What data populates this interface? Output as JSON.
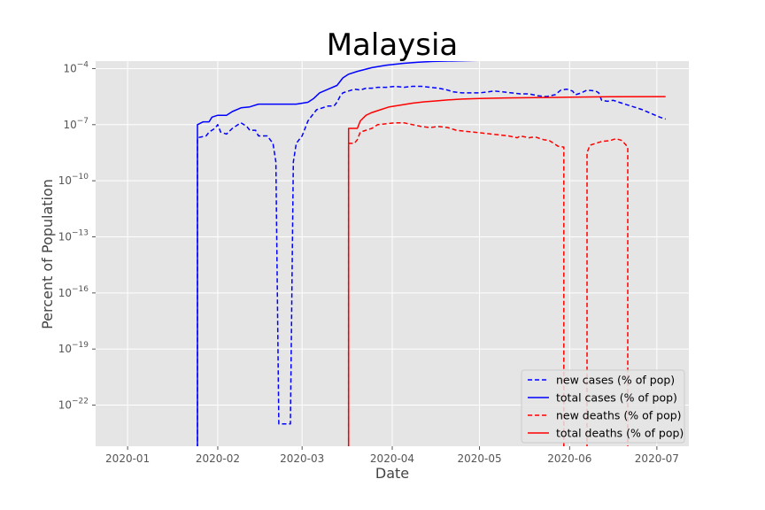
{
  "chart_data": {
    "type": "line",
    "title": "Malaysia",
    "xlabel": "Date",
    "ylabel": "Percent of Population",
    "yscale": "log",
    "xlim": [
      "2019-12-21",
      "2020-07-12"
    ],
    "ylim_log10": [
      -24.2,
      -3.6
    ],
    "grid": true,
    "legend_position": "lower-right",
    "x_ticks": [
      "2020-01-01",
      "2020-02-01",
      "2020-03-01",
      "2020-04-01",
      "2020-05-01",
      "2020-06-01",
      "2020-07-01"
    ],
    "x_tick_labels": [
      "2020-01",
      "2020-02",
      "2020-03",
      "2020-04",
      "2020-05",
      "2020-06",
      "2020-07"
    ],
    "y_tick_exponents": [
      -4,
      -7,
      -10,
      -13,
      -16,
      -19,
      -22
    ],
    "y_tick_base": "10",
    "series": [
      {
        "name": "new cases (% of pop)",
        "color": "#0000ff",
        "style": "dashed",
        "points": [
          [
            "2020-01-25",
            -40
          ],
          [
            "2020-01-25",
            -7.7
          ],
          [
            "2020-01-28",
            -7.6
          ],
          [
            "2020-01-29",
            -7.4
          ],
          [
            "2020-01-31",
            -7.2
          ],
          [
            "2020-02-01",
            -7.0
          ],
          [
            "2020-02-02",
            -7.4
          ],
          [
            "2020-02-04",
            -7.5
          ],
          [
            "2020-02-06",
            -7.2
          ],
          [
            "2020-02-08",
            -7.0
          ],
          [
            "2020-02-09",
            -6.9
          ],
          [
            "2020-02-11",
            -7.1
          ],
          [
            "2020-02-12",
            -7.3
          ],
          [
            "2020-02-14",
            -7.3
          ],
          [
            "2020-02-15",
            -7.6
          ],
          [
            "2020-02-18",
            -7.6
          ],
          [
            "2020-02-20",
            -8.0
          ],
          [
            "2020-02-21",
            -9.0
          ],
          [
            "2020-02-22",
            -23.0
          ],
          [
            "2020-02-26",
            -23.0
          ],
          [
            "2020-02-27",
            -9.0
          ],
          [
            "2020-02-28",
            -8.0
          ],
          [
            "2020-03-01",
            -7.6
          ],
          [
            "2020-03-03",
            -6.8
          ],
          [
            "2020-03-04",
            -6.6
          ],
          [
            "2020-03-06",
            -6.2
          ],
          [
            "2020-03-08",
            -6.1
          ],
          [
            "2020-03-10",
            -6.0
          ],
          [
            "2020-03-12",
            -6.0
          ],
          [
            "2020-03-13",
            -5.8
          ],
          [
            "2020-03-14",
            -5.5
          ],
          [
            "2020-03-15",
            -5.3
          ],
          [
            "2020-03-17",
            -5.2
          ],
          [
            "2020-03-19",
            -5.1
          ],
          [
            "2020-03-21",
            -5.15
          ],
          [
            "2020-03-23",
            -5.05
          ],
          [
            "2020-03-25",
            -5.05
          ],
          [
            "2020-03-27",
            -5.0
          ],
          [
            "2020-03-30",
            -5.0
          ],
          [
            "2020-04-02",
            -4.95
          ],
          [
            "2020-04-05",
            -5.0
          ],
          [
            "2020-04-08",
            -4.95
          ],
          [
            "2020-04-11",
            -4.95
          ],
          [
            "2020-04-14",
            -5.0
          ],
          [
            "2020-04-17",
            -5.05
          ],
          [
            "2020-04-20",
            -5.15
          ],
          [
            "2020-04-22",
            -5.25
          ],
          [
            "2020-04-25",
            -5.3
          ],
          [
            "2020-04-28",
            -5.3
          ],
          [
            "2020-05-01",
            -5.3
          ],
          [
            "2020-05-04",
            -5.25
          ],
          [
            "2020-05-06",
            -5.2
          ],
          [
            "2020-05-09",
            -5.25
          ],
          [
            "2020-05-12",
            -5.3
          ],
          [
            "2020-05-15",
            -5.35
          ],
          [
            "2020-05-18",
            -5.35
          ],
          [
            "2020-05-21",
            -5.45
          ],
          [
            "2020-05-24",
            -5.5
          ],
          [
            "2020-05-27",
            -5.4
          ],
          [
            "2020-05-29",
            -5.15
          ],
          [
            "2020-05-31",
            -5.1
          ],
          [
            "2020-06-02",
            -5.2
          ],
          [
            "2020-06-03",
            -5.4
          ],
          [
            "2020-06-05",
            -5.3
          ],
          [
            "2020-06-07",
            -5.15
          ],
          [
            "2020-06-10",
            -5.2
          ],
          [
            "2020-06-11",
            -5.3
          ],
          [
            "2020-06-12",
            -5.7
          ],
          [
            "2020-06-14",
            -5.75
          ],
          [
            "2020-06-16",
            -5.7
          ],
          [
            "2020-06-18",
            -5.8
          ],
          [
            "2020-06-20",
            -5.9
          ],
          [
            "2020-06-23",
            -6.05
          ],
          [
            "2020-06-26",
            -6.2
          ],
          [
            "2020-06-29",
            -6.4
          ],
          [
            "2020-07-02",
            -6.6
          ],
          [
            "2020-07-04",
            -6.7
          ]
        ]
      },
      {
        "name": "total cases (% of pop)",
        "color": "#0000ff",
        "style": "solid",
        "points": [
          [
            "2020-01-25",
            -40
          ],
          [
            "2020-01-25",
            -7.0
          ],
          [
            "2020-01-27",
            -6.85
          ],
          [
            "2020-01-29",
            -6.85
          ],
          [
            "2020-01-30",
            -6.6
          ],
          [
            "2020-02-01",
            -6.5
          ],
          [
            "2020-02-04",
            -6.5
          ],
          [
            "2020-02-06",
            -6.3
          ],
          [
            "2020-02-09",
            -6.1
          ],
          [
            "2020-02-12",
            -6.05
          ],
          [
            "2020-02-15",
            -5.9
          ],
          [
            "2020-02-20",
            -5.9
          ],
          [
            "2020-02-25",
            -5.9
          ],
          [
            "2020-02-28",
            -5.9
          ],
          [
            "2020-03-03",
            -5.8
          ],
          [
            "2020-03-05",
            -5.6
          ],
          [
            "2020-03-07",
            -5.3
          ],
          [
            "2020-03-10",
            -5.1
          ],
          [
            "2020-03-13",
            -4.9
          ],
          [
            "2020-03-15",
            -4.5
          ],
          [
            "2020-03-17",
            -4.3
          ],
          [
            "2020-03-20",
            -4.15
          ],
          [
            "2020-03-25",
            -3.95
          ],
          [
            "2020-03-30",
            -3.82
          ],
          [
            "2020-04-05",
            -3.72
          ],
          [
            "2020-04-10",
            -3.66
          ],
          [
            "2020-04-15",
            -3.62
          ],
          [
            "2020-04-20",
            -3.6
          ],
          [
            "2020-05-01",
            -3.56
          ],
          [
            "2020-05-15",
            -3.52
          ],
          [
            "2020-06-01",
            -3.48
          ],
          [
            "2020-06-15",
            -3.46
          ],
          [
            "2020-07-04",
            -3.45
          ]
        ]
      },
      {
        "name": "new deaths (% of pop)",
        "color": "#ff0000",
        "style": "dashed",
        "points": [
          [
            "2020-03-17",
            -40
          ],
          [
            "2020-03-17",
            -8.0
          ],
          [
            "2020-03-19",
            -8.0
          ],
          [
            "2020-03-20",
            -7.8
          ],
          [
            "2020-03-21",
            -7.4
          ],
          [
            "2020-03-23",
            -7.3
          ],
          [
            "2020-03-25",
            -7.2
          ],
          [
            "2020-03-27",
            -7.0
          ],
          [
            "2020-03-30",
            -6.95
          ],
          [
            "2020-04-02",
            -6.9
          ],
          [
            "2020-04-05",
            -6.9
          ],
          [
            "2020-04-08",
            -7.0
          ],
          [
            "2020-04-11",
            -7.1
          ],
          [
            "2020-04-14",
            -7.15
          ],
          [
            "2020-04-17",
            -7.1
          ],
          [
            "2020-04-20",
            -7.15
          ],
          [
            "2020-04-23",
            -7.3
          ],
          [
            "2020-04-26",
            -7.35
          ],
          [
            "2020-04-29",
            -7.4
          ],
          [
            "2020-05-02",
            -7.45
          ],
          [
            "2020-05-05",
            -7.5
          ],
          [
            "2020-05-08",
            -7.55
          ],
          [
            "2020-05-11",
            -7.6
          ],
          [
            "2020-05-14",
            -7.7
          ],
          [
            "2020-05-15",
            -7.6
          ],
          [
            "2020-05-18",
            -7.7
          ],
          [
            "2020-05-20",
            -7.65
          ],
          [
            "2020-05-23",
            -7.8
          ],
          [
            "2020-05-25",
            -7.85
          ],
          [
            "2020-05-28",
            -8.15
          ],
          [
            "2020-05-30",
            -8.2
          ],
          [
            "2020-05-30",
            -40
          ],
          [
            "2020-06-07",
            -40
          ],
          [
            "2020-06-07",
            -8.5
          ],
          [
            "2020-06-08",
            -8.1
          ],
          [
            "2020-06-10",
            -8.0
          ],
          [
            "2020-06-12",
            -7.9
          ],
          [
            "2020-06-15",
            -7.85
          ],
          [
            "2020-06-17",
            -7.75
          ],
          [
            "2020-06-19",
            -7.85
          ],
          [
            "2020-06-21",
            -8.2
          ],
          [
            "2020-06-21",
            -40
          ]
        ]
      },
      {
        "name": "total deaths (% of pop)",
        "color": "#ff0000",
        "style": "solid",
        "points": [
          [
            "2020-03-17",
            -40
          ],
          [
            "2020-03-17",
            -7.2
          ],
          [
            "2020-03-20",
            -7.2
          ],
          [
            "2020-03-21",
            -6.8
          ],
          [
            "2020-03-23",
            -6.5
          ],
          [
            "2020-03-25",
            -6.35
          ],
          [
            "2020-03-28",
            -6.2
          ],
          [
            "2020-03-31",
            -6.05
          ],
          [
            "2020-04-04",
            -5.95
          ],
          [
            "2020-04-08",
            -5.85
          ],
          [
            "2020-04-12",
            -5.78
          ],
          [
            "2020-04-16",
            -5.73
          ],
          [
            "2020-04-20",
            -5.68
          ],
          [
            "2020-04-25",
            -5.63
          ],
          [
            "2020-05-01",
            -5.6
          ],
          [
            "2020-05-10",
            -5.57
          ],
          [
            "2020-05-20",
            -5.55
          ],
          [
            "2020-06-01",
            -5.53
          ],
          [
            "2020-06-15",
            -5.51
          ],
          [
            "2020-07-04",
            -5.5
          ]
        ]
      }
    ]
  }
}
